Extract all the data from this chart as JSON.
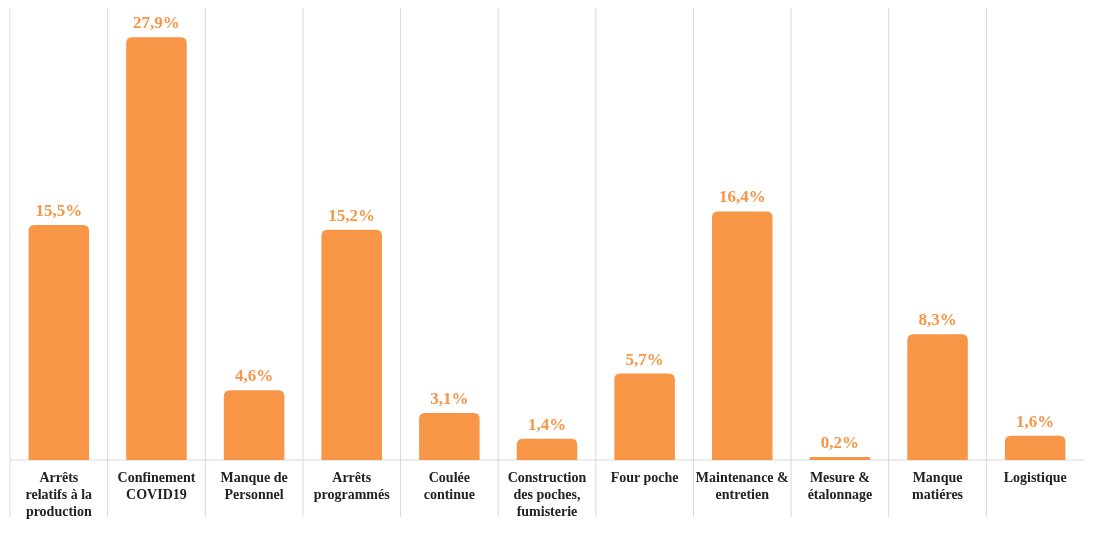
{
  "chart_data": {
    "type": "bar",
    "categories": [
      "Arrêts relatifs à la production",
      "Confinement COVID19",
      "Manque de Personnel",
      "Arrêts programmés",
      "Coulée continue",
      "Construction des poches, fumisterie",
      "Four poche",
      "Maintenance & entretien",
      "Mesure & étalonnage",
      "Manque matiéres",
      "Logistique"
    ],
    "values": [
      15.5,
      27.9,
      4.6,
      15.2,
      3.1,
      1.4,
      5.7,
      16.4,
      0.2,
      8.3,
      1.6
    ],
    "value_labels": [
      "15,5%",
      "27,9%",
      "4,6%",
      "15,2%",
      "3,1%",
      "1,4%",
      "5,7%",
      "16,4%",
      "0,2%",
      "8,3%",
      "1,6%"
    ],
    "color": "#f79646",
    "grid": "x"
  }
}
